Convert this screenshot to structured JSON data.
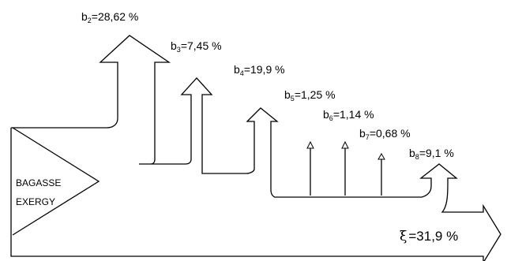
{
  "source": {
    "text": "BAGASSE EXERGY",
    "line1": "BAGASSE",
    "line2": "EXERGY"
  },
  "losses": [
    {
      "base": "b",
      "sub": "2",
      "value": "=28,62 %"
    },
    {
      "base": "b",
      "sub": "3",
      "value": "=7,45 %"
    },
    {
      "base": "b",
      "sub": "4",
      "value": "=19,9 %"
    },
    {
      "base": "b",
      "sub": "5",
      "value": "=1,25 %"
    },
    {
      "base": "b",
      "sub": "6",
      "value": "=1,14 %"
    },
    {
      "base": "b",
      "sub": "7",
      "value": "=0,68 %"
    },
    {
      "base": "b",
      "sub": "8",
      "value": "=9,1 %"
    }
  ],
  "efficiency": {
    "symbol": "ξ",
    "value": "=31,9 %"
  },
  "colors": {
    "stroke": "#000000",
    "background": "#ffffff"
  }
}
